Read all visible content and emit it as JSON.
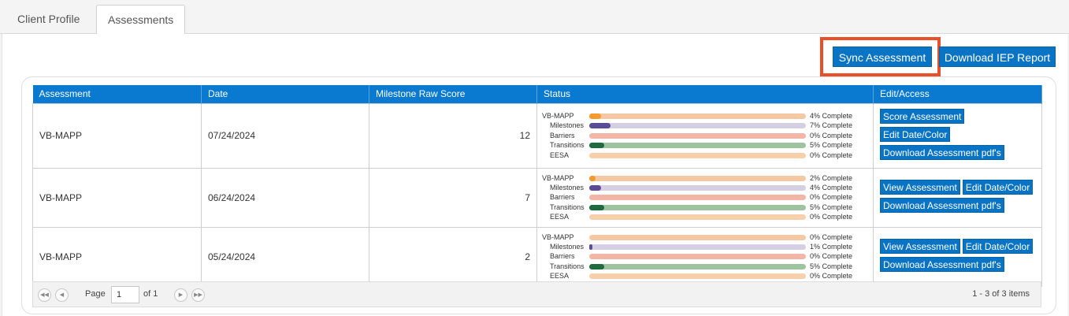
{
  "tabs": [
    {
      "label": "Client Profile"
    },
    {
      "label": "Assessments"
    }
  ],
  "toolbar": {
    "sync_label": "Sync Assessment",
    "iep_label": "Download IEP Report"
  },
  "colors": {
    "accent": "#0a74c4",
    "highlight": "#e8502a",
    "vbmapp_fill": "#f59a2e",
    "vbmapp_track": "#f5c8a4",
    "milestones_fill": "#5b4d95",
    "milestones_track": "#d4cfe2",
    "barriers_fill": "#e06a52",
    "barriers_track": "#f2b5a6",
    "transitions_fill": "#1f6a3e",
    "transitions_track": "#9dc49f",
    "eesa_fill": "#f59a2e",
    "eesa_track": "#f7cfaa"
  },
  "table": {
    "headers": [
      "Assessment",
      "Date",
      "Milestone Raw Score",
      "Status",
      "Edit/Access"
    ],
    "rows": [
      {
        "assessment": "VB-MAPP",
        "date": "07/24/2024",
        "score": "12",
        "status": [
          {
            "label": "VB-MAPP",
            "pct": 4,
            "text": "4% Complete"
          },
          {
            "label": "Milestones",
            "pct": 7,
            "text": "7% Complete"
          },
          {
            "label": "Barriers",
            "pct": 0,
            "text": "0% Complete"
          },
          {
            "label": "Transitions",
            "pct": 5,
            "text": "5% Complete"
          },
          {
            "label": "EESA",
            "pct": 0,
            "text": "0% Complete"
          }
        ],
        "actions": [
          "Score Assessment",
          "Edit Date/Color",
          "Download Assessment pdf's"
        ]
      },
      {
        "assessment": "VB-MAPP",
        "date": "06/24/2024",
        "score": "7",
        "status": [
          {
            "label": "VB-MAPP",
            "pct": 2,
            "text": "2% Complete"
          },
          {
            "label": "Milestones",
            "pct": 4,
            "text": "4% Complete"
          },
          {
            "label": "Barriers",
            "pct": 0,
            "text": "0% Complete"
          },
          {
            "label": "Transitions",
            "pct": 5,
            "text": "5% Complete"
          },
          {
            "label": "EESA",
            "pct": 0,
            "text": "0% Complete"
          }
        ],
        "actions": [
          "View Assessment",
          "Edit Date/Color",
          "Download Assessment pdf's"
        ]
      },
      {
        "assessment": "VB-MAPP",
        "date": "05/24/2024",
        "score": "2",
        "status": [
          {
            "label": "VB-MAPP",
            "pct": 0,
            "text": "0% Complete"
          },
          {
            "label": "Milestones",
            "pct": 1,
            "text": "1% Complete"
          },
          {
            "label": "Barriers",
            "pct": 0,
            "text": "0% Complete"
          },
          {
            "label": "Transitions",
            "pct": 5,
            "text": "5% Complete"
          },
          {
            "label": "EESA",
            "pct": 0,
            "text": "0% Complete"
          }
        ],
        "actions": [
          "View Assessment",
          "Edit Date/Color",
          "Download Assessment pdf's"
        ]
      }
    ]
  },
  "pager": {
    "page_label": "Page",
    "page_value": "1",
    "of_label": "of 1",
    "items_label": "1 - 3 of 3 items"
  }
}
